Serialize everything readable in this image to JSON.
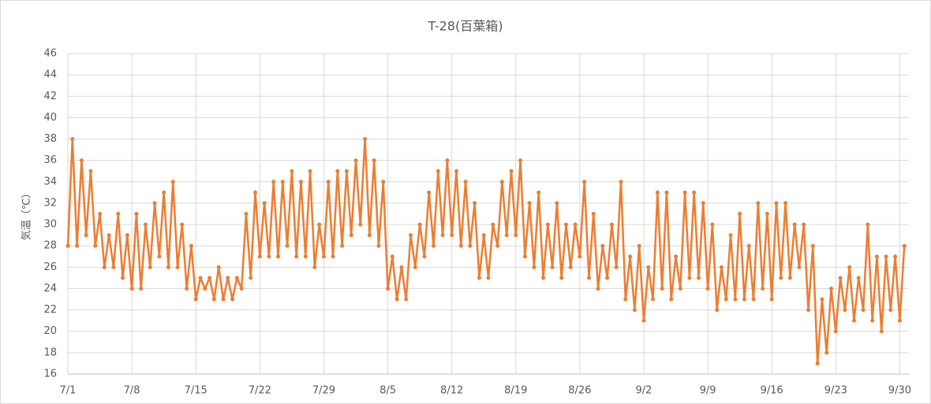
{
  "chart_data": {
    "type": "line",
    "title": "T-28(百葉箱)",
    "y_label": "気温（℃）",
    "categories": [
      "7/1",
      null,
      null,
      null,
      null,
      null,
      null,
      null,
      null,
      null,
      null,
      null,
      null,
      null,
      "7/8",
      null,
      null,
      null,
      null,
      null,
      null,
      null,
      null,
      null,
      null,
      null,
      null,
      null,
      "7/15",
      null,
      null,
      null,
      null,
      null,
      null,
      null,
      null,
      null,
      null,
      null,
      null,
      null,
      "7/22",
      null,
      null,
      null,
      null,
      null,
      null,
      null,
      null,
      null,
      null,
      null,
      null,
      null,
      "7/29",
      null,
      null,
      null,
      null,
      null,
      null,
      null,
      null,
      null,
      null,
      null,
      null,
      null,
      "8/5",
      null,
      null,
      null,
      null,
      null,
      null,
      null,
      null,
      null,
      null,
      null,
      null,
      null,
      "8/12",
      null,
      null,
      null,
      null,
      null,
      null,
      null,
      null,
      null,
      null,
      null,
      null,
      null,
      "8/19",
      null,
      null,
      null,
      null,
      null,
      null,
      null,
      null,
      null,
      null,
      null,
      null,
      null,
      "8/26",
      null,
      null,
      null,
      null,
      null,
      null,
      null,
      null,
      null,
      null,
      null,
      null,
      null,
      "9/2",
      null,
      null,
      null,
      null,
      null,
      null,
      null,
      null,
      null,
      null,
      null,
      null,
      null,
      "9/9",
      null,
      null,
      null,
      null,
      null,
      null,
      null,
      null,
      null,
      null,
      null,
      null,
      null,
      "9/16",
      null,
      null,
      null,
      null,
      null,
      null,
      null,
      null,
      null,
      null,
      null,
      null,
      null,
      "9/23",
      null,
      null,
      null,
      null,
      null,
      null,
      null,
      null,
      null,
      null,
      null,
      null,
      null,
      "9/30",
      null
    ],
    "series": [
      {
        "name": "T-28",
        "color": "#ED7D31",
        "values": [
          28,
          38,
          28,
          36,
          29,
          35,
          28,
          31,
          26,
          29,
          26,
          31,
          25,
          29,
          24,
          31,
          24,
          30,
          26,
          32,
          27,
          33,
          26,
          34,
          26,
          30,
          24,
          28,
          23,
          25,
          24,
          25,
          23,
          26,
          23,
          25,
          23,
          25,
          24,
          31,
          25,
          33,
          27,
          32,
          27,
          34,
          27,
          34,
          28,
          35,
          27,
          34,
          27,
          35,
          26,
          30,
          27,
          34,
          27,
          35,
          28,
          35,
          29,
          36,
          30,
          38,
          29,
          36,
          28,
          34,
          24,
          27,
          23,
          26,
          23,
          29,
          26,
          30,
          27,
          33,
          28,
          35,
          29,
          36,
          29,
          35,
          28,
          34,
          28,
          32,
          25,
          29,
          25,
          30,
          28,
          34,
          29,
          35,
          29,
          36,
          27,
          32,
          26,
          33,
          25,
          30,
          26,
          32,
          25,
          30,
          26,
          30,
          27,
          34,
          25,
          31,
          24,
          28,
          25,
          30,
          26,
          34,
          23,
          27,
          22,
          28,
          21,
          26,
          23,
          33,
          24,
          33,
          23,
          27,
          24,
          33,
          25,
          33,
          25,
          32,
          24,
          30,
          22,
          26,
          23,
          29,
          23,
          31,
          23,
          28,
          23,
          32,
          24,
          31,
          23,
          32,
          25,
          32,
          25,
          30,
          26,
          30,
          22,
          28,
          17,
          23,
          18,
          24,
          20,
          25,
          22,
          26,
          21,
          25,
          22,
          30,
          21,
          27,
          20,
          27,
          22,
          27,
          21,
          28
        ]
      }
    ],
    "ylim": [
      16,
      46
    ],
    "yticks": [
      16,
      18,
      20,
      22,
      24,
      26,
      28,
      30,
      32,
      34,
      36,
      38,
      40,
      42,
      44,
      46
    ],
    "grid": true
  }
}
